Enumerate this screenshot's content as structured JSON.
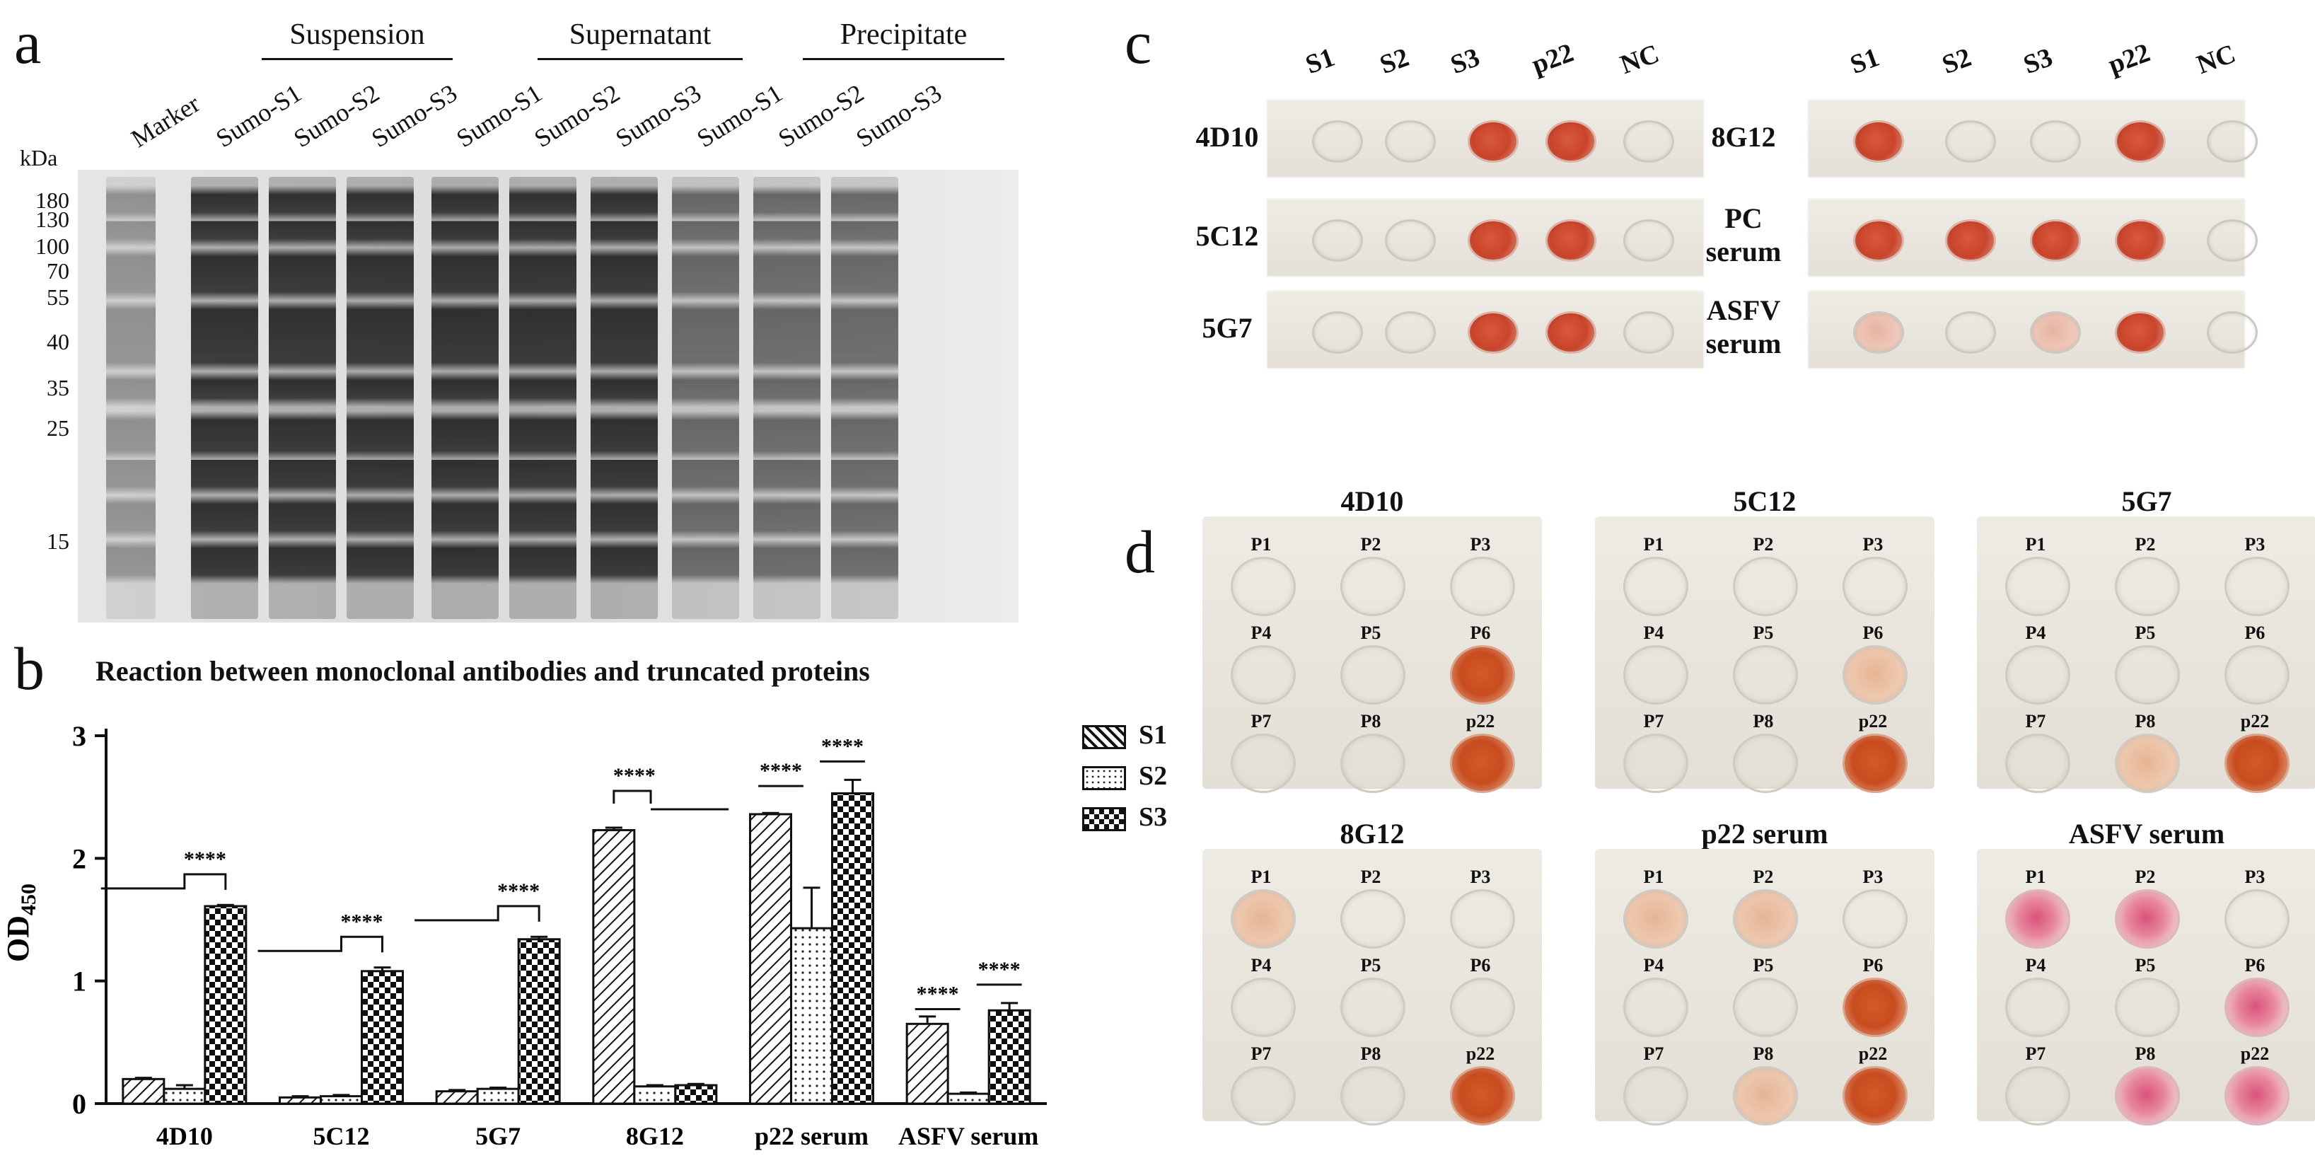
{
  "panels": {
    "a": "a",
    "b": "b",
    "c": "c",
    "d": "d"
  },
  "gel": {
    "unit": "kDa",
    "markers": [
      "180",
      "130",
      "100",
      "70",
      "55",
      "40",
      "35",
      "25",
      "15"
    ],
    "groups": [
      "Suspension",
      "Supernatant",
      "Precipitate"
    ],
    "lanes": [
      "Marker",
      "Sumo-S1",
      "Sumo-S2",
      "Sumo-S3",
      "Sumo-S1",
      "Sumo-S2",
      "Sumo-S3",
      "Sumo-S1",
      "Sumo-S2",
      "Sumo-S3"
    ]
  },
  "chart_data": {
    "type": "bar",
    "title": "Reaction between monoclonal antibodies and truncated proteins",
    "ylabel": "OD450",
    "ylabel_main": "OD",
    "ylabel_sub": "450",
    "ylim": [
      0,
      3
    ],
    "yticks": [
      "0",
      "1",
      "2",
      "3"
    ],
    "categories": [
      "4D10",
      "5C12",
      "5G7",
      "8G12",
      "p22 serum",
      "ASFV serum"
    ],
    "series": [
      {
        "name": "S1",
        "values": [
          0.2,
          0.05,
          0.1,
          2.23,
          2.36,
          0.65
        ],
        "errors": [
          0.01,
          0.01,
          0.01,
          0.02,
          0.01,
          0.06
        ]
      },
      {
        "name": "S2",
        "values": [
          0.12,
          0.06,
          0.12,
          0.14,
          1.43,
          0.08
        ],
        "errors": [
          0.03,
          0.01,
          0.01,
          0.01,
          0.33,
          0.01
        ]
      },
      {
        "name": "S3",
        "values": [
          1.61,
          1.08,
          1.34,
          0.15,
          2.53,
          0.76
        ],
        "errors": [
          0.01,
          0.03,
          0.02,
          0.01,
          0.11,
          0.06
        ]
      }
    ],
    "significance": "****",
    "legend": "right"
  },
  "dotblot_c": {
    "left": {
      "columns": [
        "S1",
        "S2",
        "S3",
        "p22",
        "NC"
      ],
      "rows": [
        {
          "label": "4D10",
          "dots": [
            "none",
            "none",
            "pos",
            "pos",
            "none"
          ]
        },
        {
          "label": "5C12",
          "dots": [
            "none",
            "none",
            "pos",
            "pos",
            "none"
          ]
        },
        {
          "label": "5G7",
          "dots": [
            "none",
            "none",
            "pos",
            "pos",
            "none"
          ]
        }
      ]
    },
    "right": {
      "columns": [
        "S1",
        "S2",
        "S3",
        "p22",
        "NC"
      ],
      "rows": [
        {
          "label": "8G12",
          "label2": "",
          "dots": [
            "pos",
            "none",
            "none",
            "pos",
            "none"
          ]
        },
        {
          "label": "PC",
          "label2": "serum",
          "dots": [
            "pos",
            "pos",
            "pos",
            "pos",
            "none"
          ]
        },
        {
          "label": "ASFV",
          "label2": "serum",
          "dots": [
            "weak",
            "none",
            "weak",
            "pos",
            "none"
          ]
        }
      ]
    }
  },
  "dotblot_d": {
    "wells": [
      "P1",
      "P2",
      "P3",
      "P4",
      "P5",
      "P6",
      "P7",
      "P8",
      "p22"
    ],
    "membranes": [
      {
        "title": "4D10",
        "states": [
          "none",
          "none",
          "none",
          "none",
          "none",
          "pos",
          "none",
          "none",
          "pos"
        ]
      },
      {
        "title": "5C12",
        "states": [
          "none",
          "none",
          "none",
          "none",
          "none",
          "weak",
          "none",
          "none",
          "pos"
        ]
      },
      {
        "title": "5G7",
        "states": [
          "none",
          "none",
          "none",
          "none",
          "none",
          "none",
          "none",
          "weak",
          "pos"
        ]
      },
      {
        "title": "8G12",
        "states": [
          "weak",
          "none",
          "none",
          "none",
          "none",
          "none",
          "none",
          "none",
          "pos"
        ]
      },
      {
        "title": "p22 serum",
        "states": [
          "weak",
          "weak",
          "none",
          "none",
          "none",
          "pos",
          "none",
          "weak",
          "pos"
        ]
      },
      {
        "title": "ASFV serum",
        "states": [
          "pink",
          "pink",
          "none",
          "none",
          "none",
          "pink",
          "none",
          "pink",
          "pink"
        ]
      }
    ]
  },
  "colors": {
    "positive": "#c9442b",
    "membrane": "#e8e4dc",
    "ink": "#2a45a8"
  }
}
